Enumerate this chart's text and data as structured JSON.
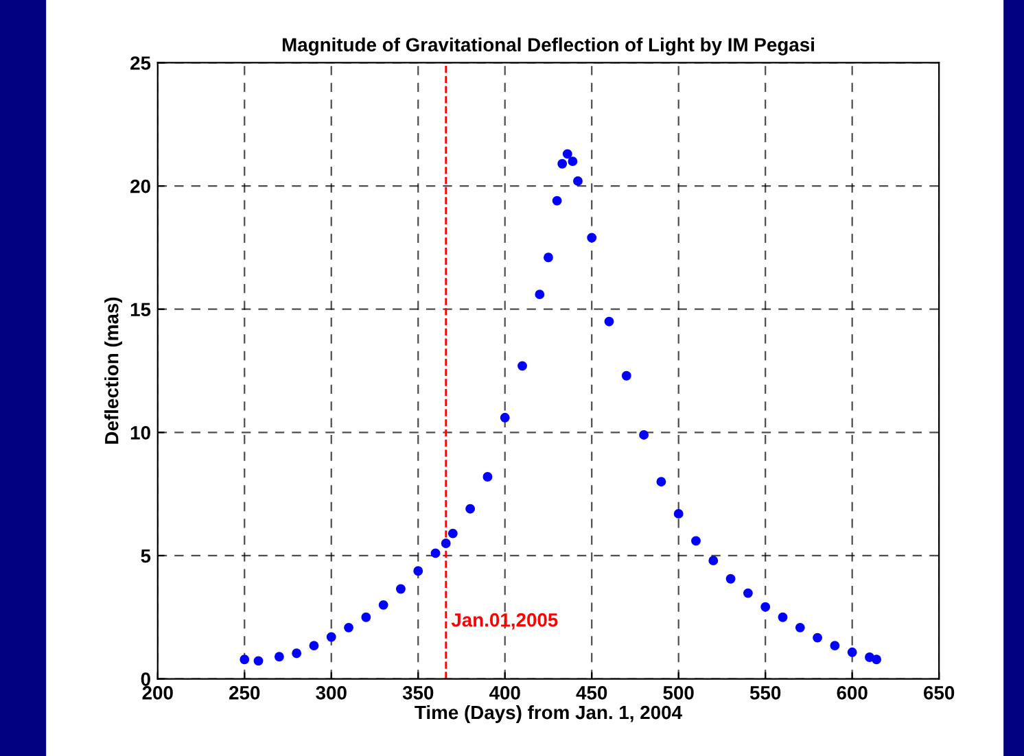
{
  "chart_data": {
    "type": "scatter",
    "title": "Magnitude of Gravitational Deflection of Light by IM Pegasi",
    "xlabel": "Time (Days) from Jan. 1, 2004",
    "ylabel": "Deflection (mas)",
    "x": [
      250,
      258,
      270,
      280,
      290,
      300,
      310,
      320,
      330,
      340,
      350,
      360,
      366,
      370,
      380,
      390,
      400,
      410,
      420,
      425,
      430,
      433,
      436,
      439,
      442,
      450,
      460,
      470,
      480,
      490,
      500,
      510,
      520,
      530,
      540,
      550,
      560,
      570,
      580,
      590,
      600,
      610,
      614
    ],
    "series": [
      {
        "color": "#0000ff",
        "values": [
          0.79,
          0.73,
          0.9,
          1.04,
          1.35,
          1.7,
          2.08,
          2.5,
          3.0,
          3.65,
          4.38,
          5.1,
          5.5,
          5.9,
          6.9,
          8.2,
          10.6,
          12.7,
          15.6,
          17.1,
          19.4,
          20.9,
          21.3,
          21.0,
          20.2,
          17.9,
          14.5,
          12.3,
          9.9,
          8.0,
          6.7,
          5.6,
          4.8,
          4.06,
          3.48,
          2.92,
          2.5,
          2.08,
          1.67,
          1.35,
          1.08,
          0.88,
          0.79
        ]
      }
    ],
    "xlim": [
      200,
      650
    ],
    "xticks": [
      200,
      250,
      300,
      350,
      400,
      450,
      500,
      550,
      600,
      650
    ],
    "ylim": [
      0,
      25
    ],
    "yticks": [
      0,
      5,
      10,
      15,
      20,
      25
    ],
    "grid": true,
    "marker": "circle",
    "ref_lines": [
      {
        "axis": "x",
        "value": 366,
        "label": "Jan.01,2005",
        "color": "#ff0000",
        "line_style": "dashed"
      }
    ]
  }
}
